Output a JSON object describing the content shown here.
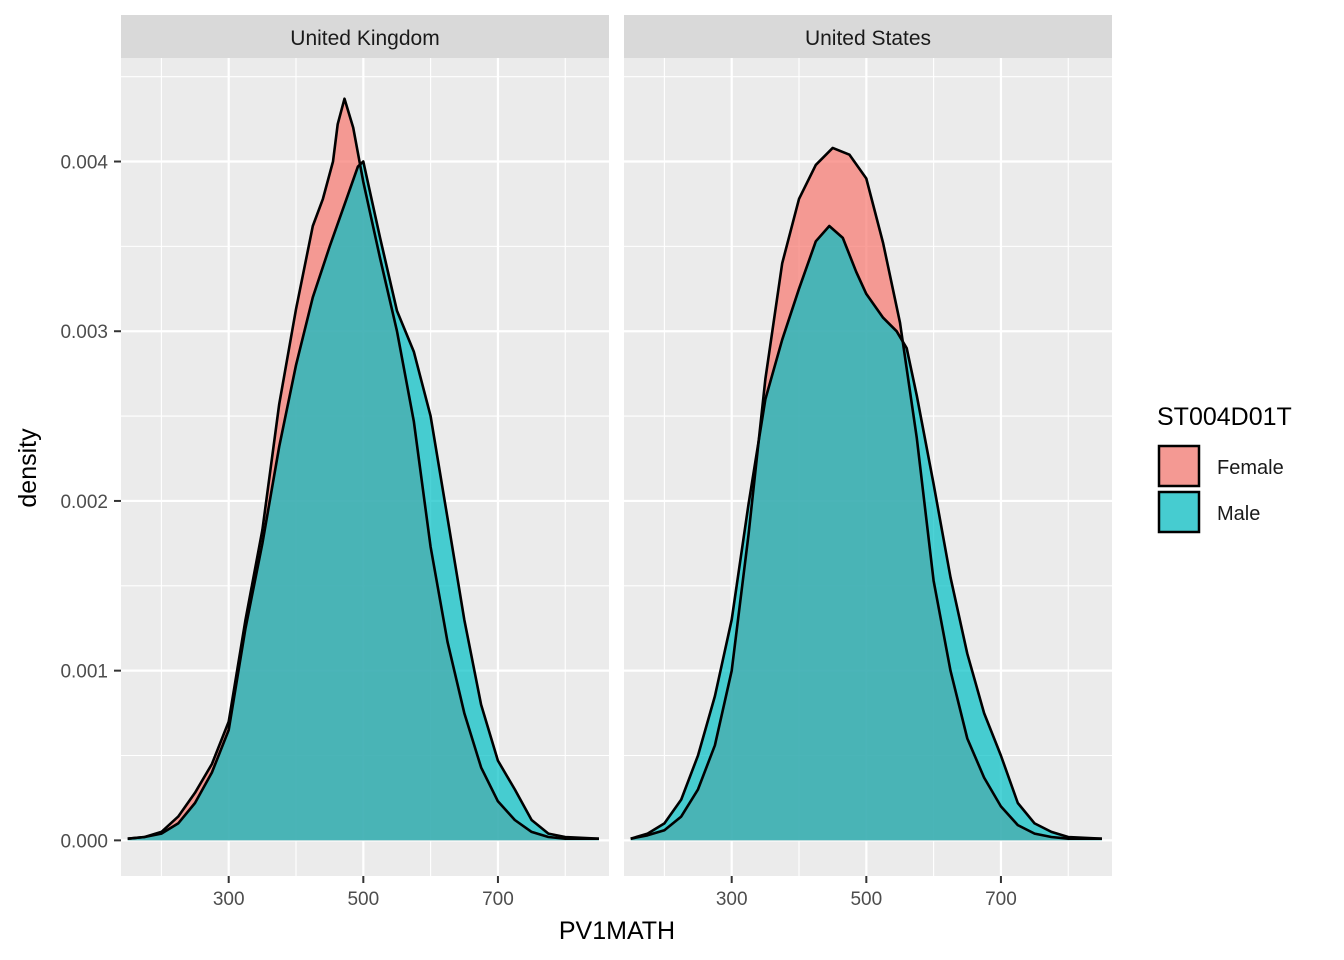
{
  "chart_data": {
    "type": "area",
    "subtype": "faceted-density",
    "xlabel": "PV1MATH",
    "ylabel": "density",
    "x_ticks": [
      300,
      500,
      700
    ],
    "y_ticks": [
      "0.000",
      "0.001",
      "0.002",
      "0.003",
      "0.004"
    ],
    "y_tick_values": [
      0,
      0.001,
      0.002,
      0.003,
      0.004
    ],
    "xlim": [
      140,
      865
    ],
    "ylim": [
      -0.00021,
      0.00461
    ],
    "legend": {
      "title": "ST004D01T",
      "position": "right",
      "entries": [
        {
          "label": "Female",
          "color": "#F8766D"
        },
        {
          "label": "Male",
          "color": "#00BFC4"
        }
      ]
    },
    "fill_opacity": 0.7,
    "grid": true,
    "facets": [
      {
        "label": "United Kingdom",
        "series": [
          {
            "name": "Female",
            "color": "#F8766D",
            "points": [
              [
                150,
                1e-05
              ],
              [
                175,
                2e-05
              ],
              [
                200,
                5e-05
              ],
              [
                225,
                0.00014
              ],
              [
                250,
                0.00028
              ],
              [
                275,
                0.00045
              ],
              [
                300,
                0.0007
              ],
              [
                325,
                0.0013
              ],
              [
                350,
                0.00183
              ],
              [
                375,
                0.00257
              ],
              [
                400,
                0.00313
              ],
              [
                425,
                0.00362
              ],
              [
                440,
                0.00378
              ],
              [
                455,
                0.004
              ],
              [
                462,
                0.00422
              ],
              [
                472,
                0.00437
              ],
              [
                485,
                0.0042
              ],
              [
                500,
                0.00388
              ],
              [
                525,
                0.00343
              ],
              [
                550,
                0.003
              ],
              [
                575,
                0.00247
              ],
              [
                600,
                0.00173
              ],
              [
                625,
                0.00117
              ],
              [
                650,
                0.00075
              ],
              [
                675,
                0.00043
              ],
              [
                700,
                0.00023
              ],
              [
                725,
                0.00012
              ],
              [
                750,
                5e-05
              ],
              [
                775,
                2e-05
              ],
              [
                800,
                1e-05
              ],
              [
                850,
                1e-05
              ]
            ]
          },
          {
            "name": "Male",
            "color": "#00BFC4",
            "points": [
              [
                150,
                1e-05
              ],
              [
                175,
                2e-05
              ],
              [
                200,
                4e-05
              ],
              [
                225,
                0.0001
              ],
              [
                250,
                0.00022
              ],
              [
                275,
                0.0004
              ],
              [
                300,
                0.00065
              ],
              [
                325,
                0.00125
              ],
              [
                350,
                0.00175
              ],
              [
                375,
                0.00232
              ],
              [
                400,
                0.0028
              ],
              [
                425,
                0.0032
              ],
              [
                450,
                0.0035
              ],
              [
                475,
                0.00378
              ],
              [
                492,
                0.00397
              ],
              [
                500,
                0.004
              ],
              [
                525,
                0.00355
              ],
              [
                550,
                0.00312
              ],
              [
                575,
                0.00288
              ],
              [
                600,
                0.0025
              ],
              [
                625,
                0.0019
              ],
              [
                650,
                0.0013
              ],
              [
                675,
                0.0008
              ],
              [
                700,
                0.00047
              ],
              [
                725,
                0.0003
              ],
              [
                750,
                0.00012
              ],
              [
                775,
                4e-05
              ],
              [
                800,
                2e-05
              ],
              [
                850,
                1e-05
              ]
            ]
          }
        ]
      },
      {
        "label": "United States",
        "series": [
          {
            "name": "Female",
            "color": "#F8766D",
            "points": [
              [
                150,
                1e-05
              ],
              [
                175,
                3e-05
              ],
              [
                200,
                6e-05
              ],
              [
                225,
                0.00014
              ],
              [
                250,
                0.0003
              ],
              [
                275,
                0.00056
              ],
              [
                300,
                0.001
              ],
              [
                325,
                0.0018
              ],
              [
                350,
                0.00272
              ],
              [
                375,
                0.0034
              ],
              [
                400,
                0.00378
              ],
              [
                425,
                0.00398
              ],
              [
                450,
                0.00408
              ],
              [
                475,
                0.00404
              ],
              [
                500,
                0.0039
              ],
              [
                525,
                0.00352
              ],
              [
                550,
                0.00305
              ],
              [
                575,
                0.00237
              ],
              [
                600,
                0.00153
              ],
              [
                625,
                0.001
              ],
              [
                650,
                0.0006
              ],
              [
                675,
                0.00037
              ],
              [
                700,
                0.0002
              ],
              [
                725,
                9e-05
              ],
              [
                750,
                4e-05
              ],
              [
                775,
                2e-05
              ],
              [
                800,
                1e-05
              ],
              [
                850,
                1e-05
              ]
            ]
          },
          {
            "name": "Male",
            "color": "#00BFC4",
            "points": [
              [
                150,
                1e-05
              ],
              [
                175,
                4e-05
              ],
              [
                200,
                0.0001
              ],
              [
                225,
                0.00024
              ],
              [
                250,
                0.0005
              ],
              [
                275,
                0.00085
              ],
              [
                300,
                0.0013
              ],
              [
                325,
                0.00198
              ],
              [
                350,
                0.0026
              ],
              [
                375,
                0.00295
              ],
              [
                400,
                0.00325
              ],
              [
                425,
                0.00353
              ],
              [
                445,
                0.00362
              ],
              [
                465,
                0.00355
              ],
              [
                485,
                0.00335
              ],
              [
                500,
                0.00322
              ],
              [
                525,
                0.00308
              ],
              [
                545,
                0.003
              ],
              [
                560,
                0.0029
              ],
              [
                575,
                0.00262
              ],
              [
                600,
                0.0021
              ],
              [
                625,
                0.00155
              ],
              [
                650,
                0.0011
              ],
              [
                675,
                0.00075
              ],
              [
                700,
                0.0005
              ],
              [
                725,
                0.00022
              ],
              [
                750,
                0.0001
              ],
              [
                775,
                5e-05
              ],
              [
                800,
                2e-05
              ],
              [
                850,
                1e-05
              ]
            ]
          }
        ]
      }
    ]
  }
}
